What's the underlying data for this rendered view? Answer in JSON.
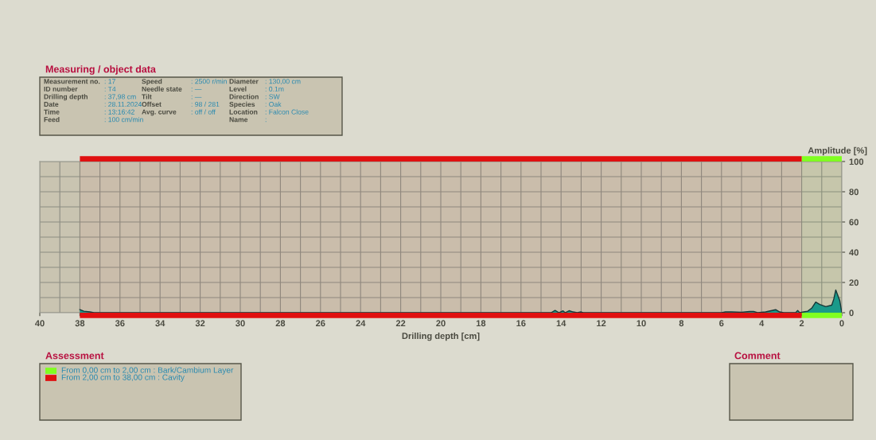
{
  "chart_data": {
    "type": "area",
    "xlabel": "Drilling depth [cm]",
    "ylabel": "Amplitude [%]",
    "xlim": [
      40,
      0
    ],
    "xticks": [
      40,
      38,
      36,
      34,
      32,
      30,
      28,
      26,
      24,
      22,
      20,
      18,
      16,
      14,
      12,
      10,
      8,
      6,
      4,
      2,
      0
    ],
    "ylim": [
      0,
      100
    ],
    "yticks": [
      0,
      20,
      40,
      60,
      80,
      100
    ],
    "grid": true,
    "series": [
      {
        "color": "#1a9a8a",
        "x": [
          38,
          37.8,
          37.5,
          37.3,
          14.5,
          14.3,
          14.1,
          13.9,
          13.8,
          13.6,
          13.4,
          13.2,
          13.0,
          12.9,
          6,
          5.8,
          5.5,
          5,
          4.6,
          4.4,
          4.2,
          3.8,
          3.3,
          3.1,
          2.9,
          2.3,
          2.2,
          2.1,
          1.9,
          1.7,
          1.5,
          1.3,
          1.1,
          0.8,
          0.5,
          0.4,
          0.3,
          0.1,
          0
        ],
        "values": [
          2,
          1,
          0.5,
          0,
          0,
          1.5,
          0,
          1.2,
          0,
          1.3,
          0.5,
          0,
          0.5,
          0,
          0,
          0.5,
          0.5,
          0.3,
          0.8,
          0.8,
          0,
          0.5,
          2,
          0.5,
          0,
          0,
          1.5,
          0,
          0.5,
          1,
          3,
          7,
          5.5,
          4,
          5,
          9,
          15,
          8,
          0
        ]
      }
    ],
    "bands": [
      {
        "axis": "x",
        "from": 0,
        "to": 2,
        "color": "#80ff20"
      },
      {
        "axis": "x",
        "from": 2,
        "to": 38,
        "color": "#e01010"
      }
    ],
    "annotations": [
      "Measuring / object data",
      "Measurement no.: 17",
      "ID number: T4",
      "Drilling depth: 37,98 cm",
      "Date: 28.11.2024",
      "Time: 13:16:42",
      "Feed: 100 cm/min",
      "Speed: 2500 r/min",
      "Needle state: —",
      "Tilt: —",
      "Offset: 98 / 281",
      "Avg. curve: off / off",
      "Diameter: 130,00 cm",
      "Level: 0.1m",
      "Direction: SW",
      "Species: Oak",
      "Location: Falcon Close",
      "Name:",
      "Assessment",
      "From 0,00 cm to 2,00 cm : Bark/Cambium Layer",
      "From 2,00 cm to 38,00 cm : Cavity",
      "Comment"
    ]
  }
}
